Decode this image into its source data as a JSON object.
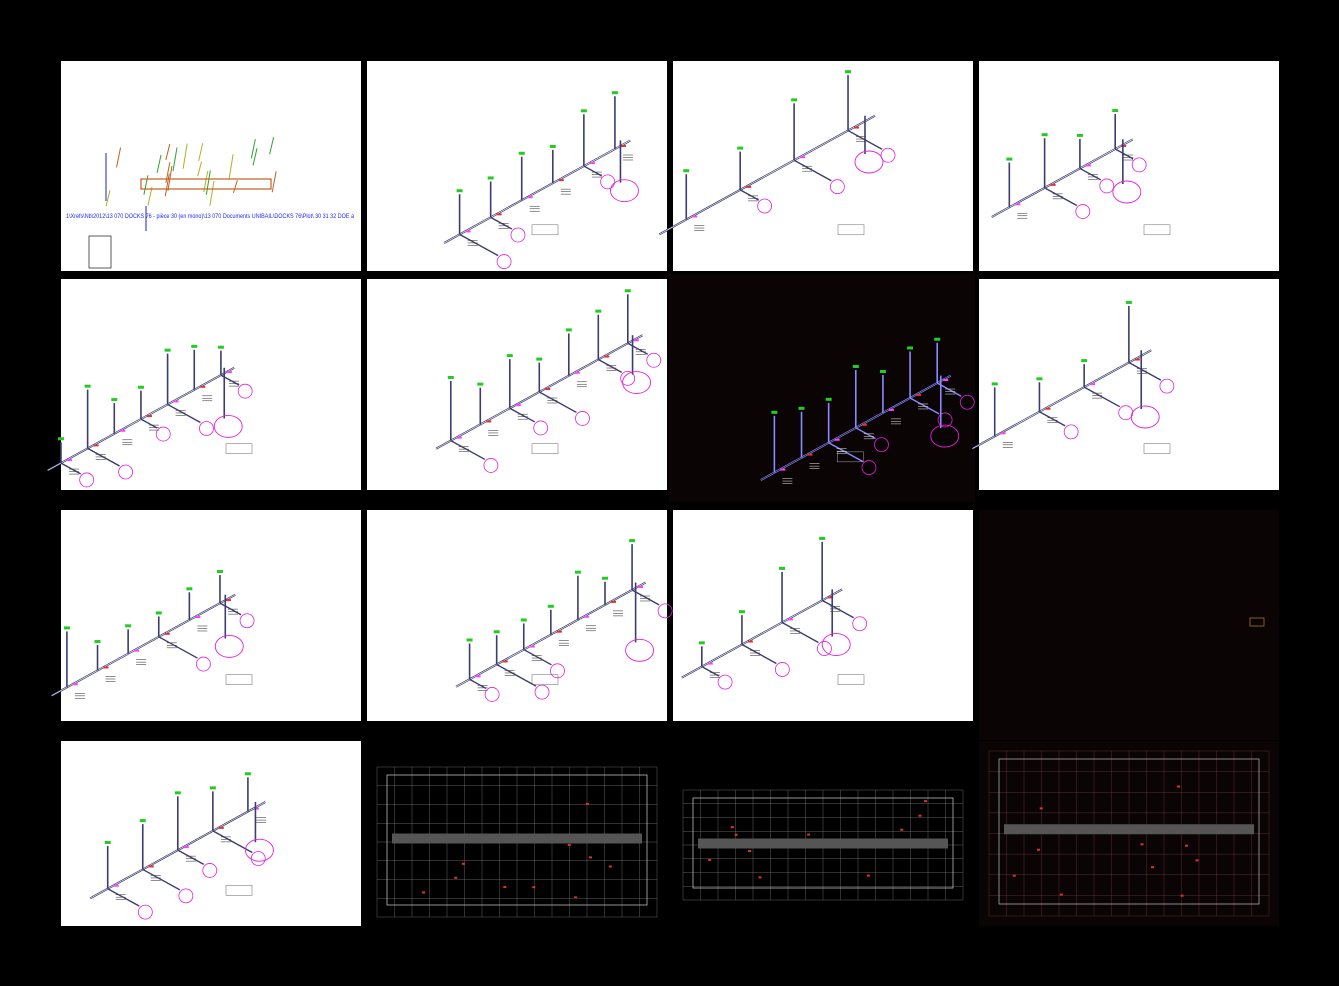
{
  "sheets": [
    {
      "caption": "1\\Xrefs\\Nb\\2012\\13 070 DOCKS 76 - pièce 30 (en mono)\\13 070 Documents UNIBAIL\\DOCKS 76\\Plot\\ 30 31 32 DOE a"
    }
  ]
}
